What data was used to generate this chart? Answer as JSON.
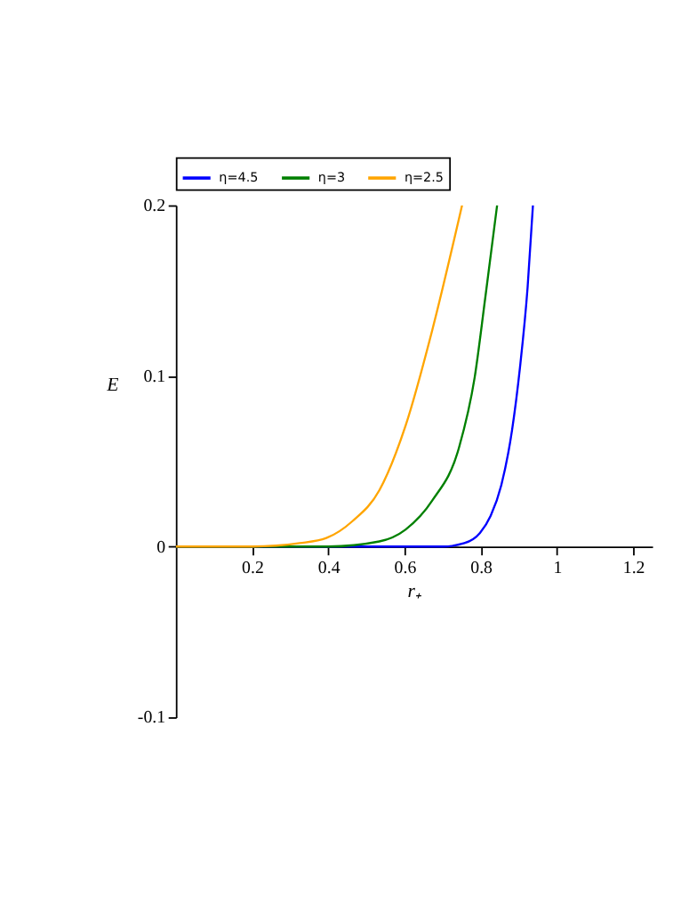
{
  "chart_data": {
    "type": "line",
    "xlabel": "r₊",
    "ylabel": "E",
    "xlim": [
      0,
      1.25
    ],
    "ylim": [
      -0.1,
      0.2
    ],
    "xticks": [
      0.2,
      0.4,
      0.6,
      0.8,
      1,
      1.2
    ],
    "yticks": [
      -0.1,
      0,
      0.1,
      0.2
    ],
    "grid": false,
    "legend": "top",
    "marker": "none",
    "line_style": "solid",
    "series": [
      {
        "name": "η=4.5",
        "color": "#0000ff",
        "x": [
          0,
          0.6,
          0.7,
          0.757,
          0.798,
          0.826,
          0.854,
          0.882,
          0.903,
          0.923,
          0.937
        ],
        "values": [
          0,
          0,
          0,
          0.002,
          0.008,
          0.018,
          0.036,
          0.068,
          0.105,
          0.152,
          0.2
        ]
      },
      {
        "name": "η=3",
        "color": "#008000",
        "x": [
          0,
          0.4,
          0.534,
          0.603,
          0.673,
          0.743,
          0.784,
          0.812,
          0.843
        ],
        "values": [
          0,
          0,
          0.003,
          0.01,
          0.027,
          0.058,
          0.099,
          0.146,
          0.2
        ]
      },
      {
        "name": "η=2.5",
        "color": "#ffa500",
        "x": [
          0,
          0.2,
          0.325,
          0.395,
          0.464,
          0.534,
          0.603,
          0.673,
          0.751
        ],
        "values": [
          0,
          0,
          0.002,
          0.005,
          0.015,
          0.033,
          0.071,
          0.127,
          0.2
        ]
      }
    ]
  }
}
